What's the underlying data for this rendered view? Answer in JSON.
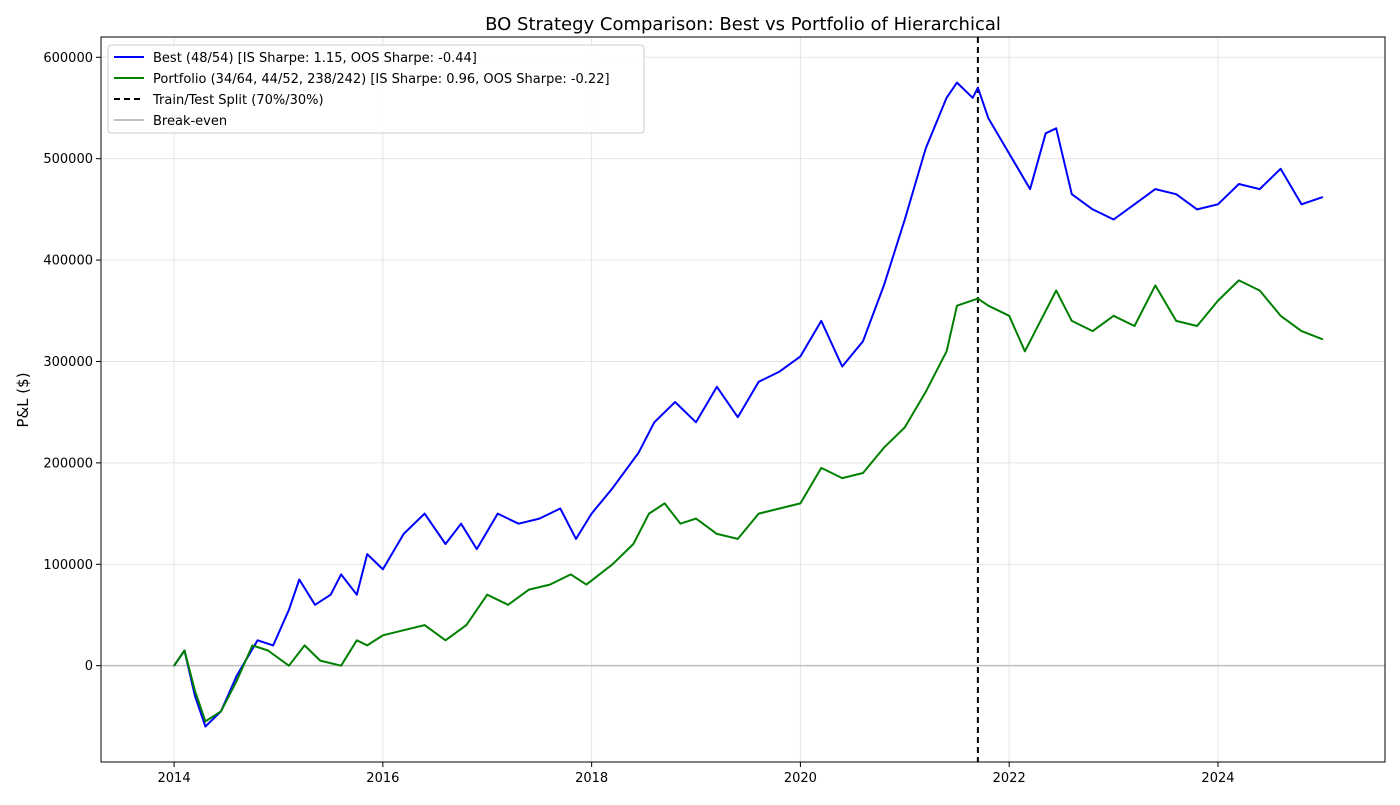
{
  "chart_data": {
    "type": "line",
    "title": "BO Strategy Comparison: Best vs Portfolio of Hierarchical",
    "xlabel": "",
    "ylabel": "P&L ($)",
    "xlim": [
      2013.3,
      2025.6
    ],
    "ylim": [
      -95000,
      620000
    ],
    "x_ticks": [
      2014,
      2016,
      2018,
      2020,
      2022,
      2024
    ],
    "x_tick_labels": [
      "2014",
      "2016",
      "2018",
      "2020",
      "2022",
      "2024"
    ],
    "y_ticks": [
      0,
      100000,
      200000,
      300000,
      400000,
      500000,
      600000
    ],
    "y_tick_labels": [
      "0",
      "100000",
      "200000",
      "300000",
      "400000",
      "500000",
      "600000"
    ],
    "grid": true,
    "legend_position": "upper-left",
    "split": {
      "name": "Train/Test Split (70%/30%)",
      "x": 2021.7,
      "color": "#000000"
    },
    "breakeven": {
      "name": "Break-even",
      "y": 0,
      "color": "#bfbfbf"
    },
    "series": [
      {
        "name": "Best (48/54) [IS Sharpe: 1.15, OOS Sharpe: -0.44]",
        "color": "#0000ff",
        "x": [
          2014.0,
          2014.1,
          2014.2,
          2014.3,
          2014.45,
          2014.6,
          2014.8,
          2014.95,
          2015.1,
          2015.2,
          2015.35,
          2015.5,
          2015.6,
          2015.75,
          2015.85,
          2016.0,
          2016.2,
          2016.4,
          2016.6,
          2016.75,
          2016.9,
          2017.1,
          2017.3,
          2017.5,
          2017.7,
          2017.85,
          2018.0,
          2018.2,
          2018.45,
          2018.6,
          2018.8,
          2019.0,
          2019.2,
          2019.4,
          2019.6,
          2019.8,
          2020.0,
          2020.2,
          2020.4,
          2020.6,
          2020.8,
          2021.0,
          2021.2,
          2021.4,
          2021.5,
          2021.65,
          2021.7,
          2021.8,
          2022.0,
          2022.2,
          2022.35,
          2022.45,
          2022.6,
          2022.8,
          2023.0,
          2023.2,
          2023.4,
          2023.6,
          2023.8,
          2024.0,
          2024.2,
          2024.4,
          2024.6,
          2024.8,
          2025.0
        ],
        "y": [
          0,
          15000,
          -30000,
          -60000,
          -45000,
          -10000,
          25000,
          20000,
          55000,
          85000,
          60000,
          70000,
          90000,
          70000,
          110000,
          95000,
          130000,
          150000,
          120000,
          140000,
          115000,
          150000,
          140000,
          145000,
          155000,
          125000,
          150000,
          175000,
          210000,
          240000,
          260000,
          240000,
          275000,
          245000,
          280000,
          290000,
          305000,
          340000,
          295000,
          320000,
          375000,
          440000,
          510000,
          560000,
          575000,
          560000,
          570000,
          540000,
          505000,
          470000,
          525000,
          530000,
          465000,
          450000,
          440000,
          455000,
          470000,
          465000,
          450000,
          455000,
          475000,
          470000,
          490000,
          455000,
          462000
        ]
      },
      {
        "name": "Portfolio (34/64, 44/52, 238/242) [IS Sharpe: 0.96, OOS Sharpe: -0.22]",
        "color": "#008000",
        "x": [
          2014.0,
          2014.1,
          2014.2,
          2014.3,
          2014.45,
          2014.6,
          2014.75,
          2014.9,
          2015.1,
          2015.25,
          2015.4,
          2015.6,
          2015.75,
          2015.85,
          2016.0,
          2016.2,
          2016.4,
          2016.6,
          2016.8,
          2017.0,
          2017.2,
          2017.4,
          2017.6,
          2017.8,
          2017.95,
          2018.2,
          2018.4,
          2018.55,
          2018.7,
          2018.85,
          2019.0,
          2019.2,
          2019.4,
          2019.6,
          2019.8,
          2020.0,
          2020.2,
          2020.4,
          2020.6,
          2020.8,
          2021.0,
          2021.2,
          2021.4,
          2021.5,
          2021.7,
          2021.8,
          2022.0,
          2022.15,
          2022.3,
          2022.45,
          2022.6,
          2022.8,
          2023.0,
          2023.2,
          2023.4,
          2023.6,
          2023.8,
          2024.0,
          2024.2,
          2024.4,
          2024.6,
          2024.8,
          2025.0
        ],
        "y": [
          0,
          15000,
          -25000,
          -55000,
          -45000,
          -15000,
          20000,
          15000,
          0,
          20000,
          5000,
          0,
          25000,
          20000,
          30000,
          35000,
          40000,
          25000,
          40000,
          70000,
          60000,
          75000,
          80000,
          90000,
          80000,
          100000,
          120000,
          150000,
          160000,
          140000,
          145000,
          130000,
          125000,
          150000,
          155000,
          160000,
          195000,
          185000,
          190000,
          215000,
          235000,
          270000,
          310000,
          355000,
          362000,
          355000,
          345000,
          310000,
          340000,
          370000,
          340000,
          330000,
          345000,
          335000,
          375000,
          340000,
          335000,
          360000,
          380000,
          370000,
          345000,
          330000,
          322000
        ]
      }
    ]
  }
}
